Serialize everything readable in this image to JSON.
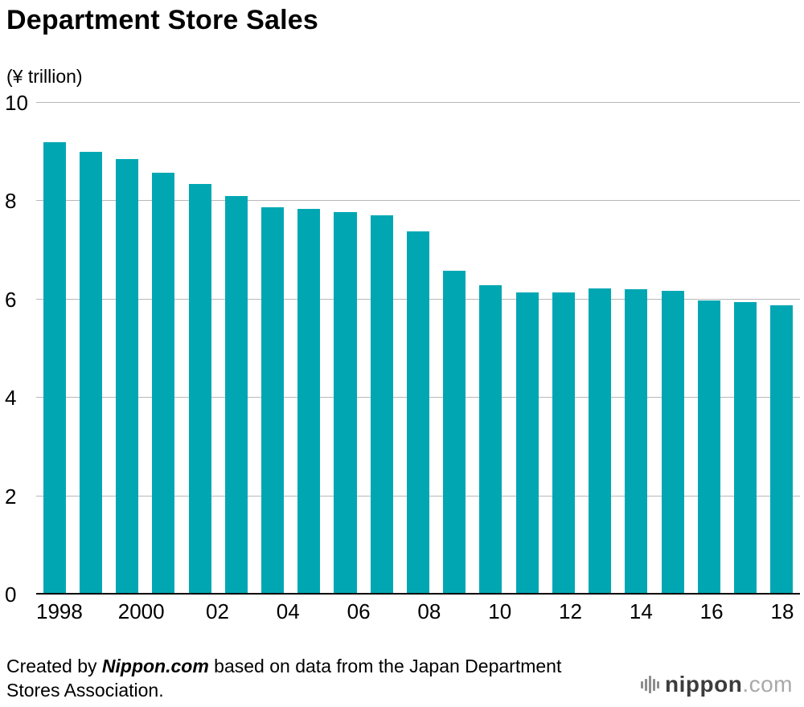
{
  "header": {
    "title": "Department Store Sales",
    "unit": "(¥ trillion)"
  },
  "chart_data": {
    "type": "bar",
    "title": "Department Store Sales",
    "ylabel": "(¥ trillion)",
    "xlabel": "",
    "ylim": [
      0,
      10
    ],
    "y_ticks": [
      0,
      2,
      4,
      6,
      8,
      10
    ],
    "grid": "horizontal",
    "legend": "none",
    "bar_color": "#00a7b3",
    "categories": [
      1998,
      1999,
      2000,
      2001,
      2002,
      2003,
      2004,
      2005,
      2006,
      2007,
      2008,
      2009,
      2010,
      2011,
      2012,
      2013,
      2014,
      2015,
      2016,
      2017,
      2018
    ],
    "x_tick_labels": [
      "1998",
      "",
      "2000",
      "",
      "02",
      "",
      "04",
      "",
      "06",
      "",
      "08",
      "",
      "10",
      "",
      "12",
      "",
      "14",
      "",
      "16",
      "",
      "18"
    ],
    "values": [
      9.2,
      9.0,
      8.85,
      8.58,
      8.35,
      8.11,
      7.88,
      7.84,
      7.77,
      7.71,
      7.39,
      6.58,
      6.29,
      6.15,
      6.15,
      6.22,
      6.21,
      6.17,
      5.98,
      5.95,
      5.88
    ]
  },
  "footer": {
    "source_prefix": "Created by ",
    "source_brand": "Nippon.com",
    "source_suffix": " based on data from the Japan Department Stores Association.",
    "logo_dark": "nippon",
    "logo_gray": ".com"
  }
}
